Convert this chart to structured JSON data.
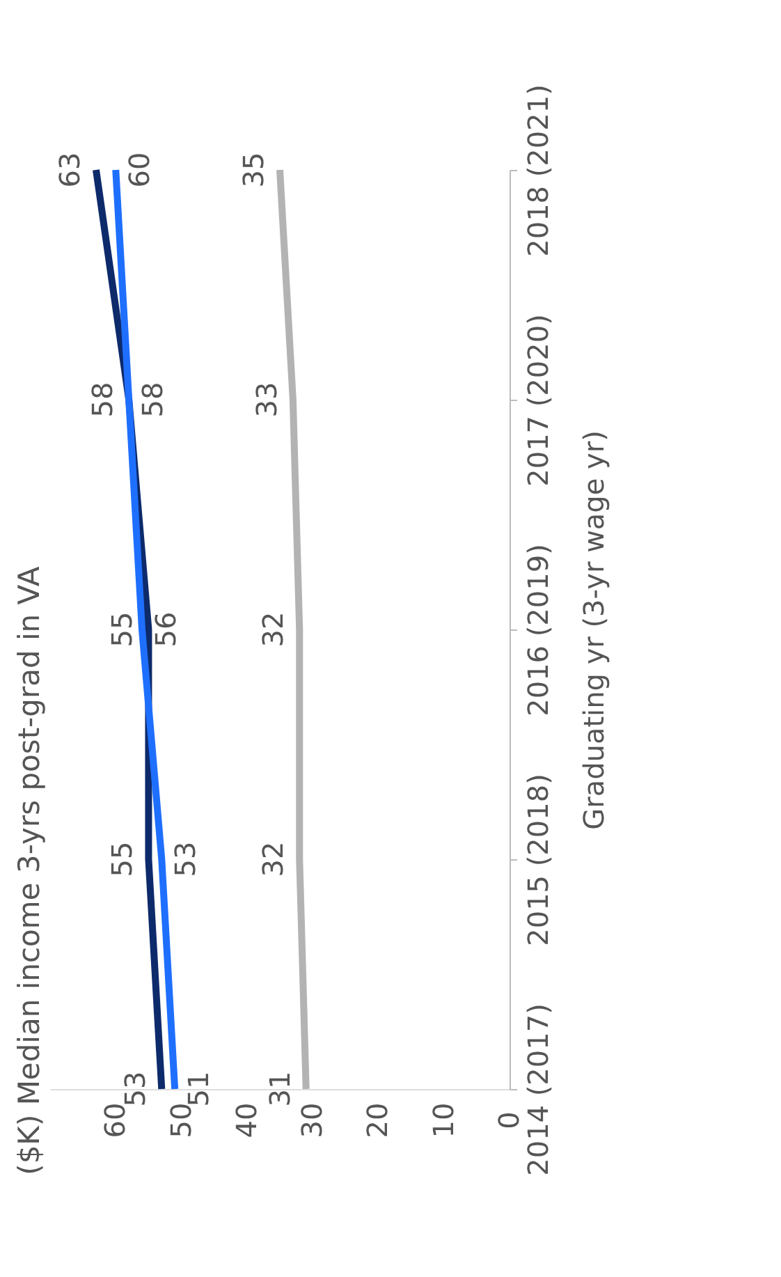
{
  "chart_data": {
    "type": "line",
    "title": "($K) Median income 3-yrs post-grad in VA",
    "ylabel": "Graduating yr (3-yr wage yr)",
    "categories": [
      "2018 (2021)",
      "2017 (2020)",
      "2016 (2019)",
      "2015 (2018)",
      "2014 (2017)"
    ],
    "series": [
      {
        "color": "#0d2a6b",
        "values": [
          63,
          58,
          55,
          55,
          53
        ]
      },
      {
        "color": "#1f6fff",
        "values": [
          60,
          58,
          56,
          53,
          51
        ]
      },
      {
        "color": "#b3b3b3",
        "values": [
          35,
          33,
          32,
          32,
          31
        ]
      }
    ],
    "orientation": "horizontal",
    "xlim": [
      70,
      0
    ],
    "xticks": [
      60,
      50,
      40,
      30,
      20,
      10,
      0
    ],
    "data_labels": true,
    "grid": false,
    "marker": "none",
    "line_style": "solid"
  }
}
